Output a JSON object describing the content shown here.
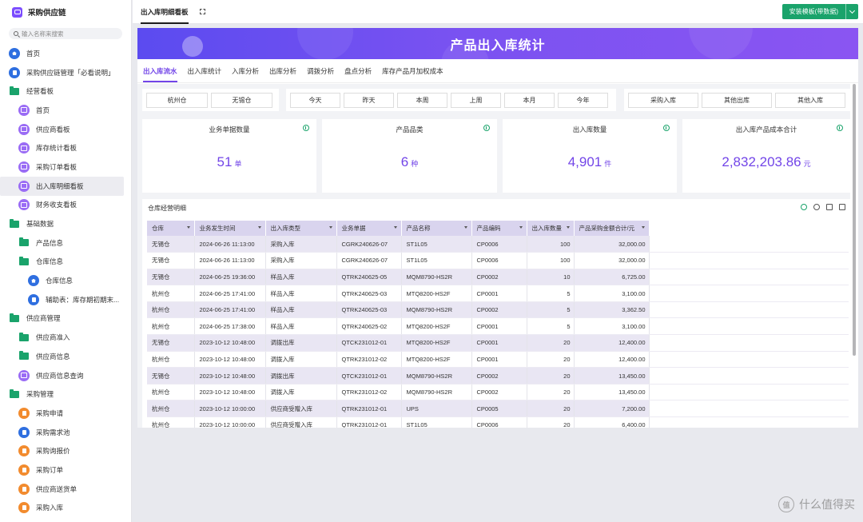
{
  "app": {
    "name": "采购供应链"
  },
  "search": {
    "placeholder": "输入名称来搜索"
  },
  "nav": [
    {
      "label": "首页",
      "level": 0,
      "icon": "home-icon",
      "color": "blue"
    },
    {
      "label": "采购供应链管理「必看说明」",
      "level": 0,
      "icon": "document-icon",
      "color": "blue"
    },
    {
      "label": "经营看板",
      "level": 0,
      "icon": "folder-icon",
      "color": "green"
    },
    {
      "label": "首页",
      "level": 1,
      "icon": "dashboard-icon",
      "color": "purple"
    },
    {
      "label": "供应商看板",
      "level": 1,
      "icon": "dashboard-icon",
      "color": "purple"
    },
    {
      "label": "库存统计看板",
      "level": 1,
      "icon": "dashboard-icon",
      "color": "purple"
    },
    {
      "label": "采购订单看板",
      "level": 1,
      "icon": "dashboard-icon",
      "color": "purple"
    },
    {
      "label": "出入库明细看板",
      "level": 1,
      "icon": "dashboard-icon",
      "color": "purple",
      "active": true
    },
    {
      "label": "财务收支看板",
      "level": 1,
      "icon": "dashboard-icon",
      "color": "purple"
    },
    {
      "label": "基础数据",
      "level": 0,
      "icon": "folder-icon",
      "color": "green"
    },
    {
      "label": "产品信息",
      "level": 1,
      "icon": "folder-icon",
      "color": "green"
    },
    {
      "label": "仓库信息",
      "level": 1,
      "icon": "folder-icon",
      "color": "green"
    },
    {
      "label": "仓库信息",
      "level": 2,
      "icon": "home-icon",
      "color": "blue"
    },
    {
      "label": "辅助表：库存期初期末...",
      "level": 2,
      "icon": "document-icon",
      "color": "blue"
    },
    {
      "label": "供应商管理",
      "level": 0,
      "icon": "folder-icon",
      "color": "green"
    },
    {
      "label": "供应商准入",
      "level": 1,
      "icon": "folder-icon",
      "color": "green"
    },
    {
      "label": "供应商信息",
      "level": 1,
      "icon": "folder-icon",
      "color": "green"
    },
    {
      "label": "供应商信息查询",
      "level": 1,
      "icon": "dashboard-icon",
      "color": "purple"
    },
    {
      "label": "采购管理",
      "level": 0,
      "icon": "folder-icon",
      "color": "green"
    },
    {
      "label": "采购申请",
      "level": 1,
      "icon": "form-icon",
      "color": "orange"
    },
    {
      "label": "采购需求池",
      "level": 1,
      "icon": "document-icon",
      "color": "blue"
    },
    {
      "label": "采购询报价",
      "level": 1,
      "icon": "form-icon",
      "color": "orange"
    },
    {
      "label": "采购订单",
      "level": 1,
      "icon": "form-icon",
      "color": "orange"
    },
    {
      "label": "供应商送货单",
      "level": 1,
      "icon": "form-icon",
      "color": "orange"
    },
    {
      "label": "采购入库",
      "level": 1,
      "icon": "form-icon",
      "color": "orange"
    }
  ],
  "topbar": {
    "tab": "出入库明细看板",
    "template_button": "安装模板(带数据)"
  },
  "banner": {
    "title": "产品出入库统计"
  },
  "tabs": [
    "出入库流水",
    "出入库统计",
    "入库分析",
    "出库分析",
    "调拨分析",
    "盘点分析",
    "库存产品月加权成本"
  ],
  "filters": {
    "warehouses": [
      "杭州仓",
      "无锡仓"
    ],
    "periods": [
      "今天",
      "昨天",
      "本周",
      "上周",
      "本月",
      "今年"
    ],
    "types": [
      "采购入库",
      "其他出库",
      "其他入库"
    ]
  },
  "kpis": [
    {
      "label": "业务单据数量",
      "value": "51",
      "unit": "单"
    },
    {
      "label": "产品品类",
      "value": "6",
      "unit": "种"
    },
    {
      "label": "出入库数量",
      "value": "4,901",
      "unit": "件"
    },
    {
      "label": "出入库产品成本合计",
      "value": "2,832,203.86",
      "unit": "元"
    }
  ],
  "table": {
    "title": "仓库经营明细",
    "columns": [
      "仓库",
      "业务发生时间",
      "出入库类型",
      "业务单据",
      "产品名称",
      "产品编码",
      "出入库数量",
      "产品采购金额合计/元"
    ],
    "rows": [
      [
        "无锡仓",
        "2024-06-26 11:13:00",
        "采购入库",
        "CGRK240626-07",
        "ST1L05",
        "CP0006",
        "100",
        "32,000.00"
      ],
      [
        "无锡仓",
        "2024-06-26 11:13:00",
        "采购入库",
        "CGRK240626-07",
        "ST1L05",
        "CP0006",
        "100",
        "32,000.00"
      ],
      [
        "无锡仓",
        "2024-06-25 19:36:00",
        "样品入库",
        "QTRK240625-05",
        "MQM8790-HS2R",
        "CP0002",
        "10",
        "6,725.00"
      ],
      [
        "杭州仓",
        "2024-06-25 17:41:00",
        "样品入库",
        "QTRK240625-03",
        "MTQ8200-HS2F",
        "CP0001",
        "5",
        "3,100.00"
      ],
      [
        "杭州仓",
        "2024-06-25 17:41:00",
        "样品入库",
        "QTRK240625-03",
        "MQM8790-HS2R",
        "CP0002",
        "5",
        "3,362.50"
      ],
      [
        "杭州仓",
        "2024-06-25 17:38:00",
        "样品入库",
        "QTRK240625-02",
        "MTQ8200-HS2F",
        "CP0001",
        "5",
        "3,100.00"
      ],
      [
        "无锡仓",
        "2023-10-12 10:48:00",
        "调拨出库",
        "QTCK231012-01",
        "MTQ8200-HS2F",
        "CP0001",
        "20",
        "12,400.00"
      ],
      [
        "杭州仓",
        "2023-10-12 10:48:00",
        "调拨入库",
        "QTRK231012-02",
        "MTQ8200-HS2F",
        "CP0001",
        "20",
        "12,400.00"
      ],
      [
        "无锡仓",
        "2023-10-12 10:48:00",
        "调拨出库",
        "QTCK231012-01",
        "MQM8790-HS2R",
        "CP0002",
        "20",
        "13,450.00"
      ],
      [
        "杭州仓",
        "2023-10-12 10:48:00",
        "调拨入库",
        "QTRK231012-02",
        "MQM8790-HS2R",
        "CP0002",
        "20",
        "13,450.00"
      ],
      [
        "杭州仓",
        "2023-10-12 10:00:00",
        "供应商受赠入库",
        "QTRK231012-01",
        "UPS",
        "CP0005",
        "20",
        "7,200.00"
      ],
      [
        "杭州仓",
        "2023-10-12 10:00:00",
        "供应商受赠入库",
        "QTRK231012-01",
        "ST1L05",
        "CP0006",
        "20",
        "6,400.00"
      ]
    ]
  },
  "watermark": {
    "text": "什么值得买",
    "icon": "值"
  },
  "colors": {
    "accent": "#7245e8",
    "green": "#1aa36b",
    "banner_start": "#5b4bf0",
    "banner_end": "#8a55f2"
  }
}
